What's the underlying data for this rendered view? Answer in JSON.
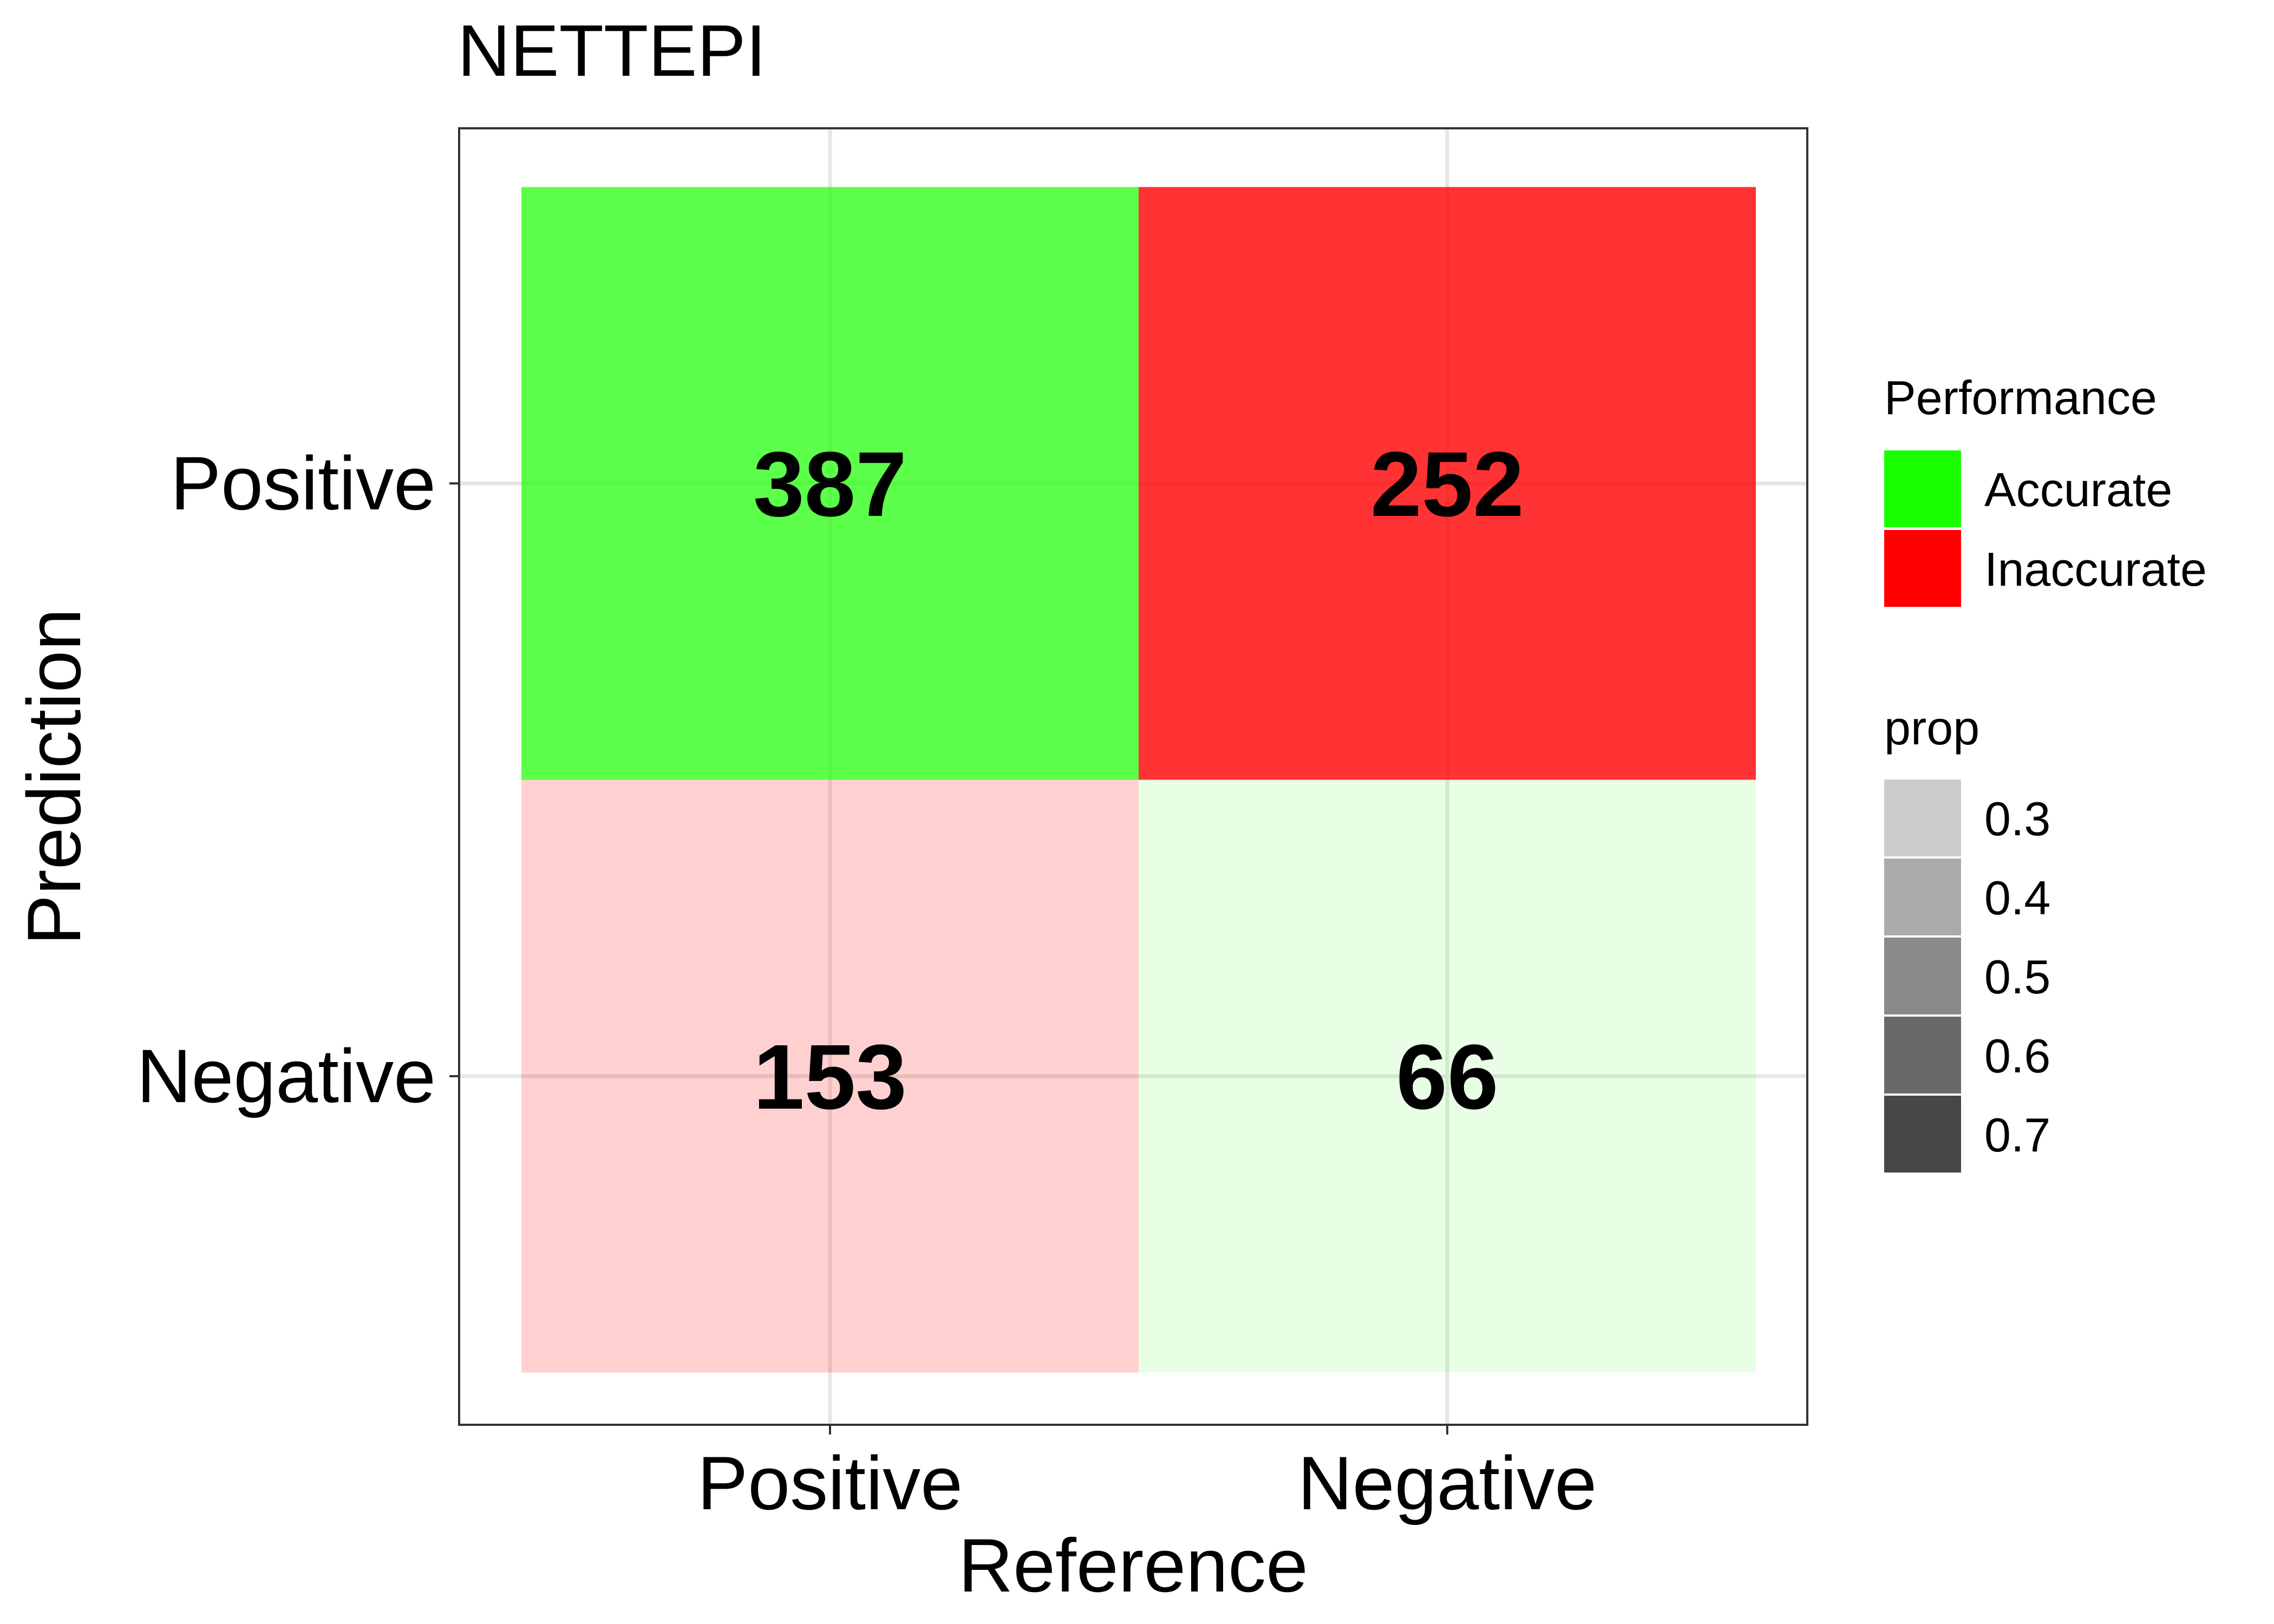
{
  "chart_data": {
    "type": "heatmap",
    "title": "NETTEPI",
    "xlabel": "Reference",
    "ylabel": "Prediction",
    "x_categories": [
      "Positive",
      "Negative"
    ],
    "y_categories": [
      "Positive",
      "Negative"
    ],
    "cells": [
      {
        "reference": "Positive",
        "prediction": "Positive",
        "count": 387,
        "performance": "Accurate",
        "prop": 0.72
      },
      {
        "reference": "Negative",
        "prediction": "Positive",
        "count": 252,
        "performance": "Inaccurate",
        "prop": 0.79
      },
      {
        "reference": "Positive",
        "prediction": "Negative",
        "count": 153,
        "performance": "Inaccurate",
        "prop": 0.28
      },
      {
        "reference": "Negative",
        "prediction": "Negative",
        "count": 66,
        "performance": "Accurate",
        "prop": 0.21
      }
    ],
    "grid": true,
    "legend_placement": "right",
    "legends": {
      "performance": {
        "title": "Performance",
        "entries": [
          {
            "label": "Accurate",
            "color": "#1aff00"
          },
          {
            "label": "Inaccurate",
            "color": "#ff0000"
          }
        ]
      },
      "prop": {
        "title": "prop",
        "entries": [
          {
            "label": "0.3",
            "value": 0.3
          },
          {
            "label": "0.4",
            "value": 0.4
          },
          {
            "label": "0.5",
            "value": 0.5
          },
          {
            "label": "0.6",
            "value": 0.6
          },
          {
            "label": "0.7",
            "value": 0.7
          }
        ]
      }
    },
    "colors": {
      "accurate": "#1aff00",
      "inaccurate": "#ff0000",
      "prop_base": "#000000"
    }
  }
}
